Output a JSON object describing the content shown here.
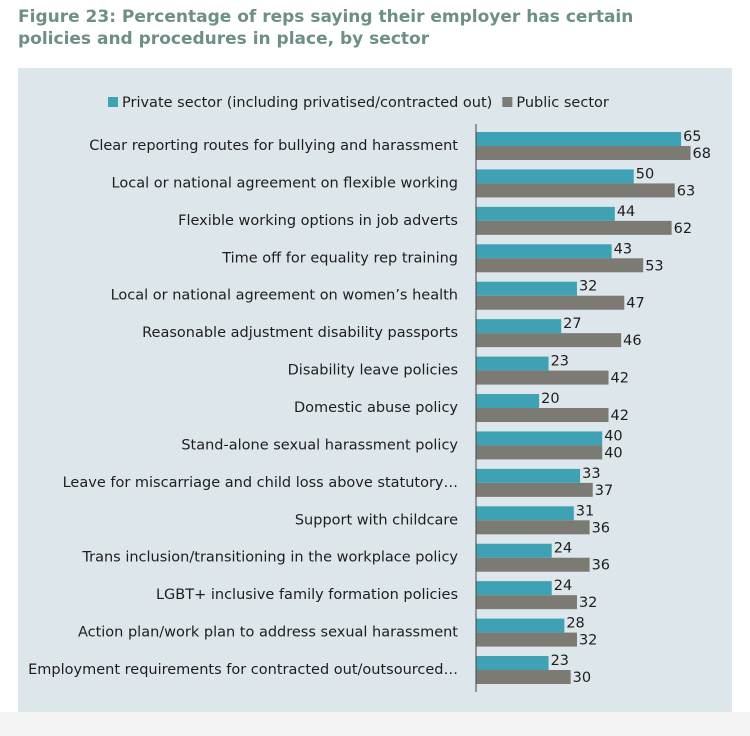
{
  "chart_data": {
    "type": "bar",
    "orientation": "horizontal",
    "title": "Figure 23: Percentage of reps saying their employer has certain policies and procedures in place, by sector",
    "categories": [
      "Clear reporting routes for bullying and harassment",
      "Local or national agreement on flexible working",
      "Flexible working options in job adverts",
      "Time off for equality rep training",
      "Local or national agreement on women’s health",
      "Reasonable adjustment disability passports",
      "Disability leave policies",
      "Domestic abuse policy",
      "Stand-alone sexual harassment policy",
      "Leave for miscarriage and child loss above statutory…",
      "Support with childcare",
      "Trans inclusion/transitioning in the workplace policy",
      "LGBT+ inclusive family formation policies",
      "Action plan/work plan to address sexual harassment",
      "Employment requirements for contracted out/outsourced…"
    ],
    "series": [
      {
        "name": "Private sector (including privatised/contracted out)",
        "color": "#3fa2b4",
        "values": [
          65,
          50,
          44,
          43,
          32,
          27,
          23,
          20,
          40,
          33,
          31,
          24,
          24,
          28,
          23
        ]
      },
      {
        "name": "Public sector",
        "color": "#7b7b74",
        "values": [
          68,
          63,
          62,
          53,
          47,
          46,
          42,
          42,
          40,
          37,
          36,
          36,
          32,
          32,
          30
        ]
      }
    ],
    "legend": "top"
  }
}
